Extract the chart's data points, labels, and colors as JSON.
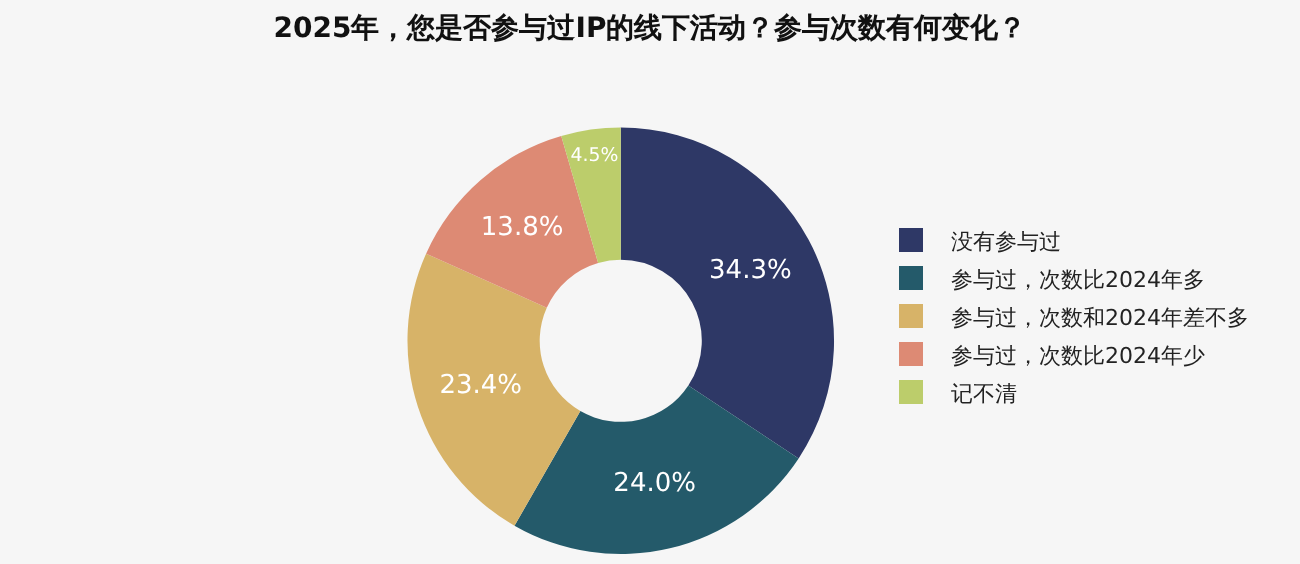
{
  "chart_data": {
    "type": "donut",
    "title": "2025年，您是否参与过IP的线下活动？参与次数有何变化？",
    "categories": [
      "没有参与过",
      "参与过，次数比2024年多",
      "参与过，次数和2024年差不多",
      "参与过，次数比2024年少",
      "记不清"
    ],
    "values": [
      34.3,
      24.0,
      23.4,
      13.8,
      4.5
    ],
    "value_labels": [
      "34.3%",
      "24.0%",
      "23.4%",
      "13.8%",
      "4.5%"
    ],
    "colors": [
      "#2e3866",
      "#245a6a",
      "#d7b368",
      "#dd8a74",
      "#bccd6b"
    ],
    "legend": "right"
  }
}
